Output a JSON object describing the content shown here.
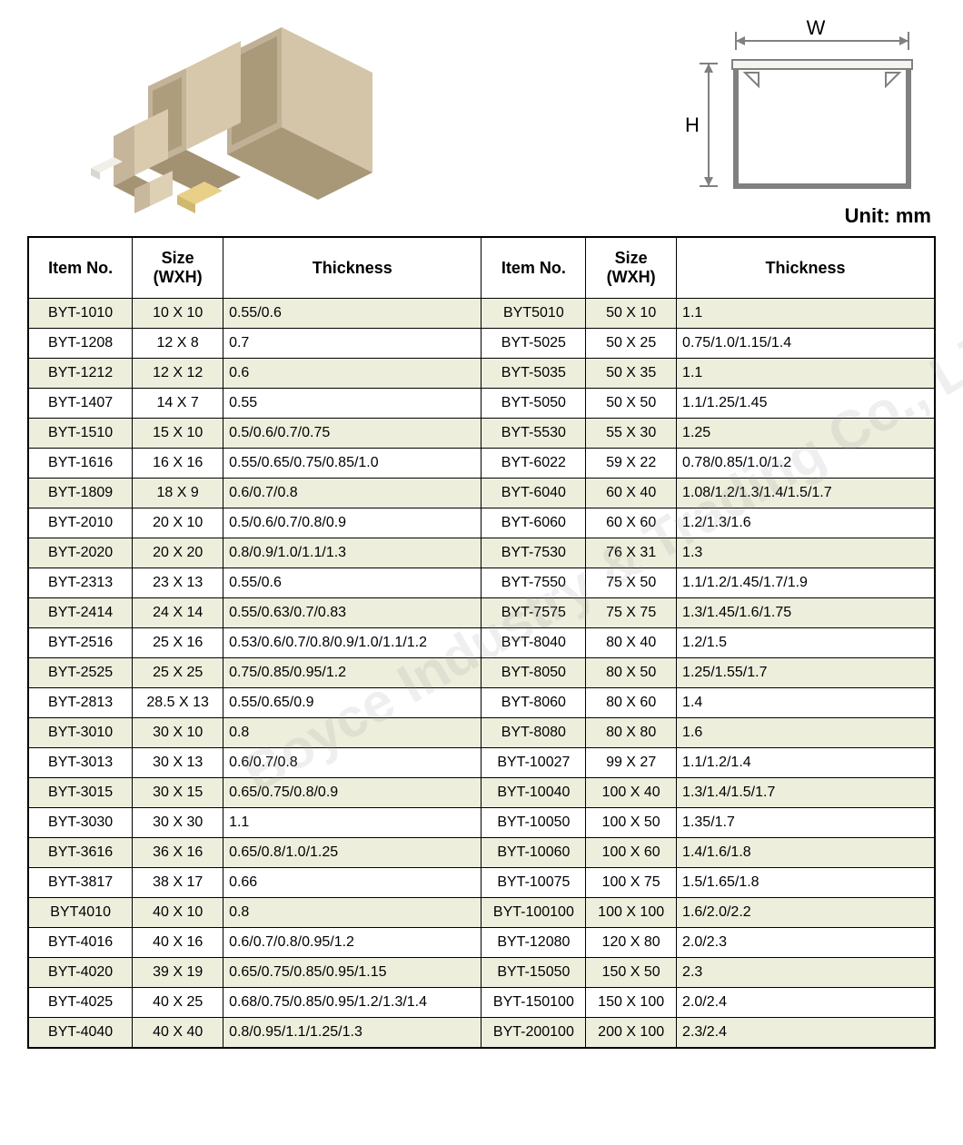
{
  "unit_label": "Unit: mm",
  "diagram": {
    "w_label": "W",
    "h_label": "H",
    "stroke_color": "#808080",
    "fill_color": "#f5f5f0"
  },
  "watermark_text": "Boyce Industry & Trading Co., Limited",
  "product_colors": {
    "trunk_light": "#e0d5c0",
    "trunk_mid": "#c5b59a",
    "trunk_dark": "#a89878",
    "trunk_yellow": "#e8d088"
  },
  "table": {
    "row_even_bg": "#eeeedd",
    "row_odd_bg": "#ffffff",
    "border_color": "#000000",
    "header_font_size": 18,
    "cell_font_size": 16,
    "columns": [
      "Item No.",
      "Size (WXH)",
      "Thickness",
      "Item No.",
      "Size (WXH)",
      "Thickness"
    ],
    "rows": [
      [
        "BYT-1010",
        "10 X 10",
        "0.55/0.6",
        "BYT5010",
        "50 X 10",
        "1.1"
      ],
      [
        "BYT-1208",
        "12 X 8",
        "0.7",
        "BYT-5025",
        "50 X 25",
        "0.75/1.0/1.15/1.4"
      ],
      [
        "BYT-1212",
        "12 X 12",
        "0.6",
        "BYT-5035",
        "50 X 35",
        "1.1"
      ],
      [
        "BYT-1407",
        "14 X 7",
        "0.55",
        "BYT-5050",
        "50 X 50",
        "1.1/1.25/1.45"
      ],
      [
        "BYT-1510",
        "15 X 10",
        "0.5/0.6/0.7/0.75",
        "BYT-5530",
        "55 X 30",
        "1.25"
      ],
      [
        "BYT-1616",
        "16 X 16",
        "0.55/0.65/0.75/0.85/1.0",
        "BYT-6022",
        "59 X 22",
        "0.78/0.85/1.0/1.2"
      ],
      [
        "BYT-1809",
        "18 X 9",
        "0.6/0.7/0.8",
        "BYT-6040",
        "60 X 40",
        "1.08/1.2/1.3/1.4/1.5/1.7"
      ],
      [
        "BYT-2010",
        "20 X 10",
        "0.5/0.6/0.7/0.8/0.9",
        "BYT-6060",
        "60 X 60",
        "1.2/1.3/1.6"
      ],
      [
        "BYT-2020",
        "20 X 20",
        "0.8/0.9/1.0/1.1/1.3",
        "BYT-7530",
        "76 X 31",
        "1.3"
      ],
      [
        "BYT-2313",
        "23 X 13",
        "0.55/0.6",
        "BYT-7550",
        "75 X 50",
        "1.1/1.2/1.45/1.7/1.9"
      ],
      [
        "BYT-2414",
        "24 X 14",
        "0.55/0.63/0.7/0.83",
        "BYT-7575",
        "75 X 75",
        "1.3/1.45/1.6/1.75"
      ],
      [
        "BYT-2516",
        "25 X 16",
        "0.53/0.6/0.7/0.8/0.9/1.0/1.1/1.2",
        "BYT-8040",
        "80 X 40",
        "1.2/1.5"
      ],
      [
        "BYT-2525",
        "25 X 25",
        "0.75/0.85/0.95/1.2",
        "BYT-8050",
        "80 X 50",
        "1.25/1.55/1.7"
      ],
      [
        "BYT-2813",
        "28.5 X 13",
        "0.55/0.65/0.9",
        "BYT-8060",
        "80 X 60",
        "1.4"
      ],
      [
        "BYT-3010",
        "30 X 10",
        "0.8",
        "BYT-8080",
        "80 X 80",
        "1.6"
      ],
      [
        "BYT-3013",
        "30 X 13",
        "0.6/0.7/0.8",
        "BYT-10027",
        "99 X 27",
        "1.1/1.2/1.4"
      ],
      [
        "BYT-3015",
        "30 X 15",
        "0.65/0.75/0.8/0.9",
        "BYT-10040",
        "100 X 40",
        "1.3/1.4/1.5/1.7"
      ],
      [
        "BYT-3030",
        "30 X 30",
        "1.1",
        "BYT-10050",
        "100 X 50",
        "1.35/1.7"
      ],
      [
        "BYT-3616",
        "36 X 16",
        "0.65/0.8/1.0/1.25",
        "BYT-10060",
        "100 X 60",
        "1.4/1.6/1.8"
      ],
      [
        "BYT-3817",
        "38 X 17",
        "0.66",
        "BYT-10075",
        "100 X 75",
        "1.5/1.65/1.8"
      ],
      [
        "BYT4010",
        "40 X 10",
        "0.8",
        "BYT-100100",
        "100 X 100",
        "1.6/2.0/2.2"
      ],
      [
        "BYT-4016",
        "40 X 16",
        "0.6/0.7/0.8/0.95/1.2",
        "BYT-12080",
        "120 X 80",
        "2.0/2.3"
      ],
      [
        "BYT-4020",
        "39 X 19",
        "0.65/0.75/0.85/0.95/1.15",
        "BYT-15050",
        "150 X 50",
        "2.3"
      ],
      [
        "BYT-4025",
        "40 X 25",
        "0.68/0.75/0.85/0.95/1.2/1.3/1.4",
        "BYT-150100",
        "150 X 100",
        "2.0/2.4"
      ],
      [
        "BYT-4040",
        "40 X 40",
        "0.8/0.95/1.1/1.25/1.3",
        "BYT-200100",
        "200 X 100",
        "2.3/2.4"
      ]
    ]
  }
}
